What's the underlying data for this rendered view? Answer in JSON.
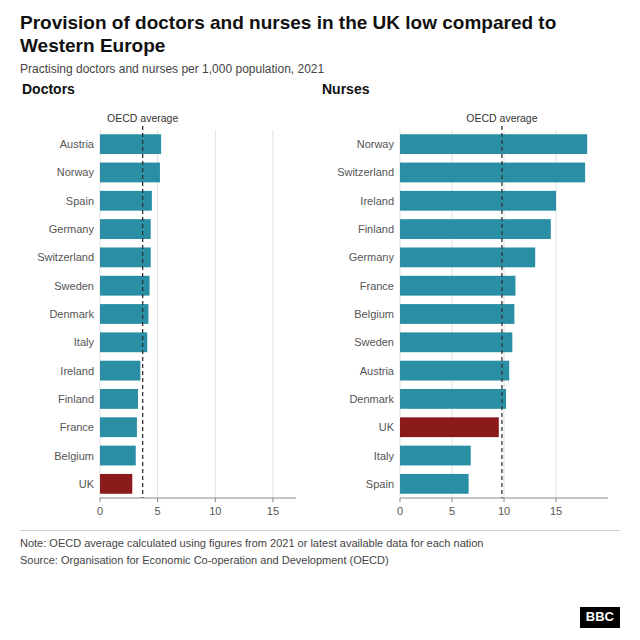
{
  "title": "Provision of doctors and nurses in the UK low compared to Western Europe",
  "subtitle": "Practising doctors and nurses per 1,000 population, 2021",
  "annotations": [
    "Note: OECD average calculated using figures from 2021 or latest available data for each nation",
    "Source: Organisation for Economic Co-operation and Development (OECD)",
    "BBC"
  ],
  "chart_data": [
    {
      "type": "bar",
      "orientation": "horizontal",
      "title": "Doctors",
      "categories": [
        "Austria",
        "Norway",
        "Spain",
        "Germany",
        "Switzerland",
        "Sweden",
        "Denmark",
        "Italy",
        "Ireland",
        "Finland",
        "France",
        "Belgium",
        "UK"
      ],
      "values": [
        5.3,
        5.2,
        4.5,
        4.4,
        4.4,
        4.3,
        4.2,
        4.1,
        3.5,
        3.3,
        3.2,
        3.1,
        2.8
      ],
      "colors": [
        "#2a8fa4",
        "#2a8fa4",
        "#2a8fa4",
        "#2a8fa4",
        "#2a8fa4",
        "#2a8fa4",
        "#2a8fa4",
        "#2a8fa4",
        "#2a8fa4",
        "#2a8fa4",
        "#2a8fa4",
        "#2a8fa4",
        "#8b1a1a"
      ],
      "xlim": [
        0,
        17
      ],
      "xticks": [
        0,
        5,
        10,
        15
      ],
      "grid": true,
      "annotations": [
        {
          "text": "OECD average",
          "x": 3.7
        }
      ]
    },
    {
      "type": "bar",
      "orientation": "horizontal",
      "title": "Nurses",
      "categories": [
        "Norway",
        "Switzerland",
        "Ireland",
        "Finland",
        "Germany",
        "France",
        "Belgium",
        "Sweden",
        "Austria",
        "Denmark",
        "UK",
        "Italy",
        "Spain"
      ],
      "values": [
        18.0,
        17.8,
        15.0,
        14.5,
        13.0,
        11.1,
        11.0,
        10.8,
        10.5,
        10.2,
        9.5,
        6.8,
        6.6
      ],
      "colors": [
        "#2a8fa4",
        "#2a8fa4",
        "#2a8fa4",
        "#2a8fa4",
        "#2a8fa4",
        "#2a8fa4",
        "#2a8fa4",
        "#2a8fa4",
        "#2a8fa4",
        "#2a8fa4",
        "#8b1a1a",
        "#2a8fa4",
        "#2a8fa4"
      ],
      "xlim": [
        0,
        20
      ],
      "xticks": [
        0,
        5,
        10,
        15
      ],
      "grid": true,
      "annotations": [
        {
          "text": "OECD average",
          "x": 9.8
        }
      ]
    }
  ]
}
